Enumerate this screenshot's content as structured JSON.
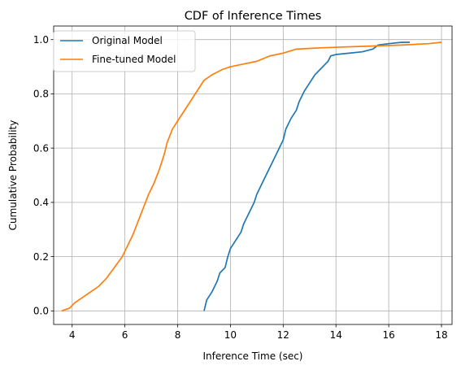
{
  "chart_data": {
    "type": "line",
    "title": "CDF of Inference Times",
    "xlabel": "Inference Time (sec)",
    "ylabel": "Cumulative Probability",
    "xlim": [
      3.3,
      18.4
    ],
    "ylim": [
      -0.05,
      1.05
    ],
    "xticks": [
      4,
      6,
      8,
      10,
      12,
      14,
      16,
      18
    ],
    "xtick_labels": [
      "4",
      "6",
      "8",
      "10",
      "12",
      "14",
      "16",
      "18"
    ],
    "yticks": [
      0.0,
      0.2,
      0.4,
      0.6,
      0.8,
      1.0
    ],
    "ytick_labels": [
      "0.0",
      "0.2",
      "0.4",
      "0.6",
      "0.8",
      "1.0"
    ],
    "grid": true,
    "legend_position": "upper-left",
    "series": [
      {
        "name": "Original Model",
        "color": "#1f77b4",
        "x": [
          9.0,
          9.1,
          9.3,
          9.5,
          9.6,
          9.8,
          9.9,
          10.0,
          10.2,
          10.4,
          10.5,
          10.7,
          10.9,
          11.0,
          11.2,
          11.4,
          11.6,
          11.8,
          12.0,
          12.1,
          12.3,
          12.5,
          12.6,
          12.8,
          13.0,
          13.2,
          13.4,
          13.6,
          13.7,
          13.8,
          14.0,
          14.5,
          15.0,
          15.4,
          15.6,
          16.0,
          16.5,
          16.8
        ],
        "y": [
          0.0,
          0.04,
          0.07,
          0.11,
          0.14,
          0.16,
          0.2,
          0.23,
          0.26,
          0.29,
          0.32,
          0.36,
          0.4,
          0.43,
          0.47,
          0.51,
          0.55,
          0.59,
          0.63,
          0.67,
          0.71,
          0.74,
          0.77,
          0.81,
          0.84,
          0.87,
          0.89,
          0.91,
          0.92,
          0.94,
          0.945,
          0.95,
          0.955,
          0.965,
          0.98,
          0.985,
          0.99,
          0.99
        ]
      },
      {
        "name": "Fine-tuned Model",
        "color": "#ff7f0e",
        "x": [
          3.6,
          3.9,
          4.1,
          4.4,
          4.7,
          5.0,
          5.3,
          5.6,
          5.9,
          6.1,
          6.3,
          6.5,
          6.7,
          6.9,
          7.1,
          7.3,
          7.5,
          7.6,
          7.8,
          8.0,
          8.2,
          8.4,
          8.6,
          8.8,
          9.0,
          9.3,
          9.7,
          10.0,
          10.5,
          11.0,
          11.5,
          12.0,
          12.5,
          13.5,
          15.0,
          16.5,
          17.5,
          18.0
        ],
        "y": [
          0.0,
          0.01,
          0.03,
          0.05,
          0.07,
          0.09,
          0.12,
          0.16,
          0.2,
          0.24,
          0.28,
          0.33,
          0.38,
          0.43,
          0.47,
          0.52,
          0.58,
          0.62,
          0.67,
          0.7,
          0.73,
          0.76,
          0.79,
          0.82,
          0.85,
          0.87,
          0.89,
          0.9,
          0.91,
          0.92,
          0.94,
          0.95,
          0.965,
          0.97,
          0.975,
          0.98,
          0.985,
          0.99
        ]
      }
    ]
  }
}
